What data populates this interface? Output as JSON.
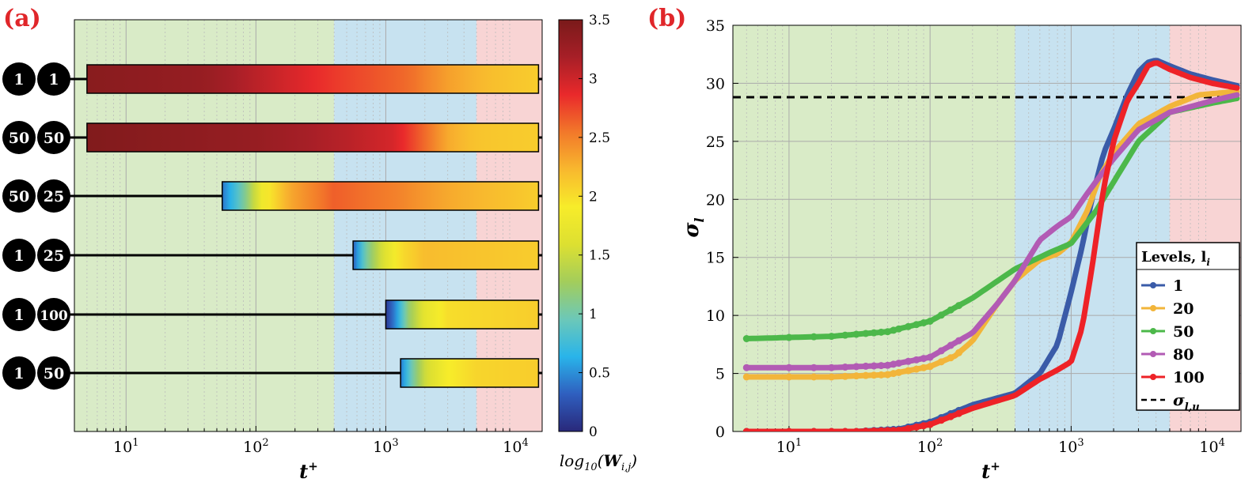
{
  "colors": {
    "green_zone": "#d9ebc7",
    "blue_zone": "#c7e2f0",
    "pink_zone": "#f8d4d4",
    "panel_label": "#e0262a",
    "series": {
      "1": "#3a5ba8",
      "20": "#f2b53a",
      "50": "#4cb84a",
      "80": "#b25bb4",
      "100": "#ee2227"
    },
    "colormap": [
      "#29287a",
      "#2f5fbf",
      "#29b4ea",
      "#6cc8b8",
      "#a3cd5b",
      "#dde031",
      "#f7ec2a",
      "#f8b82e",
      "#f2782a",
      "#e9292b",
      "#a71f27",
      "#7a1a1a"
    ]
  },
  "panel_a": {
    "label": "(a)",
    "xlabel": "t",
    "xlabel_sup": "+",
    "x_ticks": [
      {
        "base": "10",
        "exp": "1"
      },
      {
        "base": "10",
        "exp": "2"
      },
      {
        "base": "10",
        "exp": "3"
      },
      {
        "base": "10",
        "exp": "4"
      }
    ],
    "colorbar_ticks": [
      "0",
      "0.5",
      "1",
      "1.5",
      "2",
      "2.5",
      "3",
      "3.5"
    ],
    "colorbar_label_pre": "log",
    "colorbar_label_sub": "10",
    "colorbar_label_w": "W",
    "colorbar_label_wsub": "i,j",
    "rows": [
      {
        "i": "1",
        "j": "1"
      },
      {
        "i": "50",
        "j": "50"
      },
      {
        "i": "50",
        "j": "25"
      },
      {
        "i": "1",
        "j": "25"
      },
      {
        "i": "1",
        "j": "100"
      },
      {
        "i": "1",
        "j": "50"
      }
    ]
  },
  "panel_b": {
    "label": "(b)",
    "ylabel": "σ",
    "ylabel_sub": "l",
    "legend_title": "Levels, l",
    "legend_title_sub": "i",
    "legend_ref_label": "σ",
    "legend_ref_sub": "l,u"
  },
  "chart_data": [
    {
      "type": "heatmap",
      "title": "(a)",
      "xlabel": "t+",
      "x_scale": "log",
      "xlim": [
        4,
        16000
      ],
      "colorbar": {
        "label": "log10(W_i,j)",
        "range": [
          0,
          3.5
        ]
      },
      "zones": [
        {
          "from": 4,
          "to": 400,
          "color": "green"
        },
        {
          "from": 400,
          "to": 5000,
          "color": "blue"
        },
        {
          "from": 5000,
          "to": 16000,
          "color": "pink"
        }
      ],
      "rows": [
        {
          "pair": "1-1",
          "start": 5,
          "end": 15000,
          "value_profile": [
            [
              5,
              3.4
            ],
            [
              40,
              3.3
            ],
            [
              120,
              3.05
            ],
            [
              400,
              2.8
            ],
            [
              1500,
              2.6
            ],
            [
              3000,
              2.35
            ],
            [
              6000,
              2.2
            ],
            [
              15000,
              2.1
            ]
          ]
        },
        {
          "pair": "50-50",
          "start": 5,
          "end": 15000,
          "value_profile": [
            [
              5,
              3.45
            ],
            [
              100,
              3.3
            ],
            [
              500,
              3.1
            ],
            [
              1200,
              2.95
            ],
            [
              2000,
              2.6
            ],
            [
              3000,
              2.3
            ],
            [
              5000,
              2.15
            ],
            [
              15000,
              2.1
            ]
          ]
        },
        {
          "pair": "50-25",
          "start": 55,
          "end": 15000,
          "value_profile": [
            [
              55,
              0.4
            ],
            [
              80,
              1.0
            ],
            [
              110,
              1.8
            ],
            [
              180,
              2.3
            ],
            [
              400,
              2.65
            ],
            [
              1200,
              2.5
            ],
            [
              3000,
              2.3
            ],
            [
              15000,
              2.1
            ]
          ]
        },
        {
          "pair": "1-25",
          "start": 560,
          "end": 15000,
          "value_profile": [
            [
              560,
              0.3
            ],
            [
              700,
              1.0
            ],
            [
              900,
              1.5
            ],
            [
              1300,
              2.0
            ],
            [
              2000,
              2.2
            ],
            [
              15000,
              2.1
            ]
          ]
        },
        {
          "pair": "1-100",
          "start": 1000,
          "end": 15000,
          "value_profile": [
            [
              1000,
              0.1
            ],
            [
              1200,
              0.5
            ],
            [
              1500,
              1.2
            ],
            [
              2000,
              1.7
            ],
            [
              3000,
              2.0
            ],
            [
              15000,
              2.1
            ]
          ]
        },
        {
          "pair": "1-50",
          "start": 1300,
          "end": 15000,
          "value_profile": [
            [
              1300,
              0.4
            ],
            [
              1600,
              1.0
            ],
            [
              2000,
              1.5
            ],
            [
              3000,
              1.9
            ],
            [
              5000,
              2.05
            ],
            [
              15000,
              2.1
            ]
          ]
        }
      ]
    },
    {
      "type": "line",
      "title": "(b)",
      "xlabel": "t+",
      "ylabel": "σ_l",
      "x_scale": "log",
      "xlim": [
        4,
        16000
      ],
      "ylim": [
        0,
        35
      ],
      "y_ticks": [
        0,
        5,
        10,
        15,
        20,
        25,
        30,
        35
      ],
      "reference_line": {
        "name": "σ_l,u",
        "y": 28.8
      },
      "legend_position": "bottom-right",
      "series": [
        {
          "name": "1",
          "points": [
            [
              5,
              0
            ],
            [
              30,
              0
            ],
            [
              60,
              0.2
            ],
            [
              100,
              0.8
            ],
            [
              200,
              2.3
            ],
            [
              400,
              3.3
            ],
            [
              600,
              5.0
            ],
            [
              800,
              7.5
            ],
            [
              1000,
              12
            ],
            [
              1200,
              16
            ],
            [
              1400,
              20
            ],
            [
              1700,
              24
            ],
            [
              2000,
              26
            ],
            [
              2500,
              29
            ],
            [
              3000,
              31
            ],
            [
              3500,
              31.8
            ],
            [
              4000,
              32
            ],
            [
              5000,
              31.5
            ],
            [
              7000,
              30.8
            ],
            [
              10000,
              30.3
            ],
            [
              15000,
              29.8
            ]
          ]
        },
        {
          "name": "20",
          "points": [
            [
              5,
              4.7
            ],
            [
              20,
              4.7
            ],
            [
              50,
              4.9
            ],
            [
              100,
              5.6
            ],
            [
              150,
              6.5
            ],
            [
              200,
              7.8
            ],
            [
              300,
              11
            ],
            [
              400,
              13
            ],
            [
              600,
              14.8
            ],
            [
              800,
              15.3
            ],
            [
              1000,
              16.3
            ],
            [
              1300,
              19
            ],
            [
              1600,
              22
            ],
            [
              2000,
              24
            ],
            [
              3000,
              26.5
            ],
            [
              5000,
              28
            ],
            [
              8000,
              29
            ],
            [
              15000,
              29.3
            ]
          ]
        },
        {
          "name": "50",
          "points": [
            [
              5,
              8
            ],
            [
              10,
              8.1
            ],
            [
              20,
              8.2
            ],
            [
              50,
              8.6
            ],
            [
              100,
              9.5
            ],
            [
              200,
              11.5
            ],
            [
              400,
              14
            ],
            [
              700,
              15.4
            ],
            [
              1000,
              16.2
            ],
            [
              1500,
              19
            ],
            [
              2000,
              21.5
            ],
            [
              3000,
              25
            ],
            [
              5000,
              27.5
            ],
            [
              10000,
              28.3
            ],
            [
              15000,
              28.7
            ]
          ]
        },
        {
          "name": "80",
          "points": [
            [
              5,
              5.5
            ],
            [
              20,
              5.5
            ],
            [
              50,
              5.7
            ],
            [
              100,
              6.4
            ],
            [
              200,
              8.5
            ],
            [
              300,
              11
            ],
            [
              400,
              13
            ],
            [
              600,
              16.5
            ],
            [
              800,
              17.7
            ],
            [
              1000,
              18.5
            ],
            [
              1300,
              20.5
            ],
            [
              1600,
              22
            ],
            [
              2000,
              23.5
            ],
            [
              3000,
              26
            ],
            [
              5000,
              27.5
            ],
            [
              10000,
              28.5
            ],
            [
              15000,
              29
            ]
          ]
        },
        {
          "name": "100",
          "points": [
            [
              5,
              0
            ],
            [
              30,
              0
            ],
            [
              60,
              0.1
            ],
            [
              100,
              0.6
            ],
            [
              200,
              2
            ],
            [
              400,
              3.1
            ],
            [
              600,
              4.5
            ],
            [
              800,
              5.3
            ],
            [
              1000,
              6
            ],
            [
              1200,
              9
            ],
            [
              1400,
              14
            ],
            [
              1700,
              21
            ],
            [
              2000,
              25
            ],
            [
              2500,
              28.5
            ],
            [
              3000,
              30
            ],
            [
              3500,
              31.5
            ],
            [
              4000,
              31.8
            ],
            [
              5000,
              31.2
            ],
            [
              7000,
              30.5
            ],
            [
              10000,
              30
            ],
            [
              15000,
              29.6
            ]
          ]
        }
      ]
    }
  ]
}
